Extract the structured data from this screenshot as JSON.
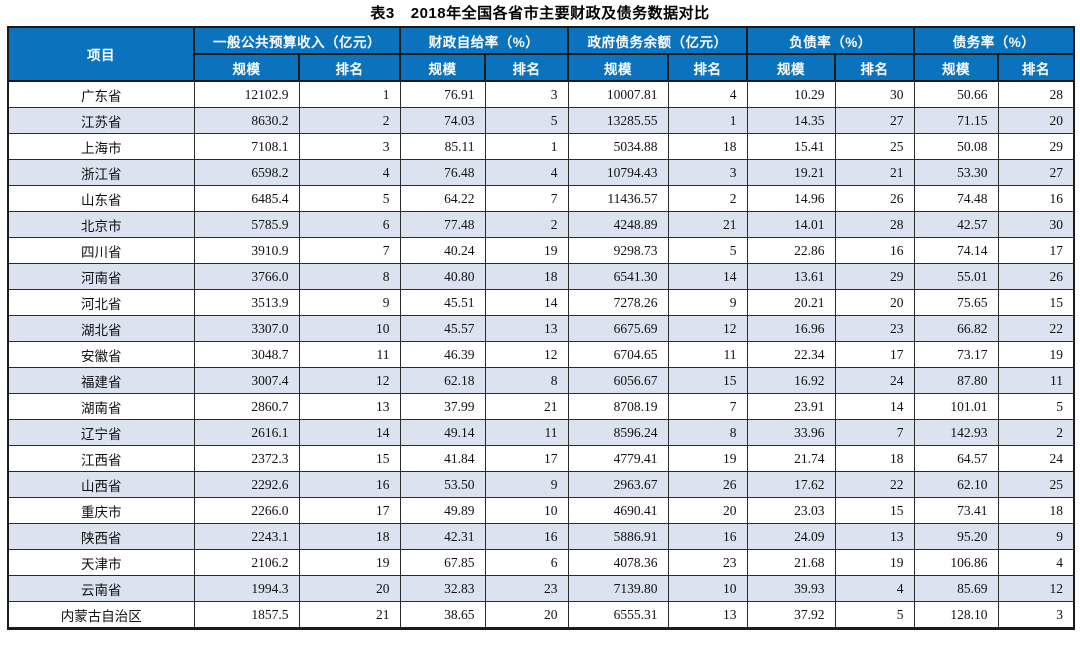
{
  "page": {
    "title_prefix": "表3",
    "title": "2018年全国各省市主要财政及债务数据对比"
  },
  "table": {
    "item_header": "项目",
    "groups": [
      "一般公共预算收入（亿元）",
      "财政自给率（%）",
      "政府债务余额（亿元）",
      "负债率（%）",
      "债务率（%）"
    ],
    "sub_headers": [
      "规模",
      "排名"
    ],
    "rows": [
      {
        "name": "广东省",
        "values": [
          "12102.9",
          "1",
          "76.91",
          "3",
          "10007.81",
          "4",
          "10.29",
          "30",
          "50.66",
          "28"
        ]
      },
      {
        "name": "江苏省",
        "values": [
          "8630.2",
          "2",
          "74.03",
          "5",
          "13285.55",
          "1",
          "14.35",
          "27",
          "71.15",
          "20"
        ]
      },
      {
        "name": "上海市",
        "values": [
          "7108.1",
          "3",
          "85.11",
          "1",
          "5034.88",
          "18",
          "15.41",
          "25",
          "50.08",
          "29"
        ]
      },
      {
        "name": "浙江省",
        "values": [
          "6598.2",
          "4",
          "76.48",
          "4",
          "10794.43",
          "3",
          "19.21",
          "21",
          "53.30",
          "27"
        ]
      },
      {
        "name": "山东省",
        "values": [
          "6485.4",
          "5",
          "64.22",
          "7",
          "11436.57",
          "2",
          "14.96",
          "26",
          "74.48",
          "16"
        ]
      },
      {
        "name": "北京市",
        "values": [
          "5785.9",
          "6",
          "77.48",
          "2",
          "4248.89",
          "21",
          "14.01",
          "28",
          "42.57",
          "30"
        ]
      },
      {
        "name": "四川省",
        "values": [
          "3910.9",
          "7",
          "40.24",
          "19",
          "9298.73",
          "5",
          "22.86",
          "16",
          "74.14",
          "17"
        ]
      },
      {
        "name": "河南省",
        "values": [
          "3766.0",
          "8",
          "40.80",
          "18",
          "6541.30",
          "14",
          "13.61",
          "29",
          "55.01",
          "26"
        ]
      },
      {
        "name": "河北省",
        "values": [
          "3513.9",
          "9",
          "45.51",
          "14",
          "7278.26",
          "9",
          "20.21",
          "20",
          "75.65",
          "15"
        ]
      },
      {
        "name": "湖北省",
        "values": [
          "3307.0",
          "10",
          "45.57",
          "13",
          "6675.69",
          "12",
          "16.96",
          "23",
          "66.82",
          "22"
        ]
      },
      {
        "name": "安徽省",
        "values": [
          "3048.7",
          "11",
          "46.39",
          "12",
          "6704.65",
          "11",
          "22.34",
          "17",
          "73.17",
          "19"
        ]
      },
      {
        "name": "福建省",
        "values": [
          "3007.4",
          "12",
          "62.18",
          "8",
          "6056.67",
          "15",
          "16.92",
          "24",
          "87.80",
          "11"
        ]
      },
      {
        "name": "湖南省",
        "values": [
          "2860.7",
          "13",
          "37.99",
          "21",
          "8708.19",
          "7",
          "23.91",
          "14",
          "101.01",
          "5"
        ]
      },
      {
        "name": "辽宁省",
        "values": [
          "2616.1",
          "14",
          "49.14",
          "11",
          "8596.24",
          "8",
          "33.96",
          "7",
          "142.93",
          "2"
        ]
      },
      {
        "name": "江西省",
        "values": [
          "2372.3",
          "15",
          "41.84",
          "17",
          "4779.41",
          "19",
          "21.74",
          "18",
          "64.57",
          "24"
        ]
      },
      {
        "name": "山西省",
        "values": [
          "2292.6",
          "16",
          "53.50",
          "9",
          "2963.67",
          "26",
          "17.62",
          "22",
          "62.10",
          "25"
        ]
      },
      {
        "name": "重庆市",
        "values": [
          "2266.0",
          "17",
          "49.89",
          "10",
          "4690.41",
          "20",
          "23.03",
          "15",
          "73.41",
          "18"
        ]
      },
      {
        "name": "陕西省",
        "values": [
          "2243.1",
          "18",
          "42.31",
          "16",
          "5886.91",
          "16",
          "24.09",
          "13",
          "95.20",
          "9"
        ]
      },
      {
        "name": "天津市",
        "values": [
          "2106.2",
          "19",
          "67.85",
          "6",
          "4078.36",
          "23",
          "21.68",
          "19",
          "106.86",
          "4"
        ]
      },
      {
        "name": "云南省",
        "values": [
          "1994.3",
          "20",
          "32.83",
          "23",
          "7139.80",
          "10",
          "39.93",
          "4",
          "85.69",
          "12"
        ]
      },
      {
        "name": "内蒙古自治区",
        "values": [
          "1857.5",
          "21",
          "38.65",
          "20",
          "6555.31",
          "13",
          "37.92",
          "5",
          "128.10",
          "3"
        ]
      }
    ]
  },
  "colors": {
    "header_bg": "#0b72bd",
    "header_text": "#ffffff",
    "stripe_bg": "#dbe3f1",
    "border": "#1a1a1a",
    "text": "#111111"
  }
}
